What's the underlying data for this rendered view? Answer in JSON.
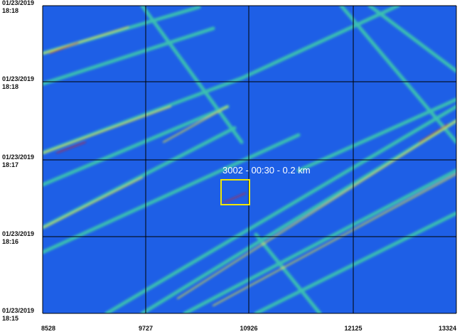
{
  "y_axis": {
    "ticks": [
      {
        "date": "01/23/2019",
        "time": "18:18"
      },
      {
        "date": "01/23/2019",
        "time": "18:18"
      },
      {
        "date": "01/23/2019",
        "time": "18:17"
      },
      {
        "date": "01/23/2019",
        "time": "18:16"
      },
      {
        "date": "01/23/2019",
        "time": "18:15"
      }
    ]
  },
  "x_axis": {
    "ticks": [
      "8528",
      "9727",
      "10926",
      "12125",
      "13324"
    ]
  },
  "annotation": {
    "label": "3002 - 00:30 - 0.2 km"
  }
}
